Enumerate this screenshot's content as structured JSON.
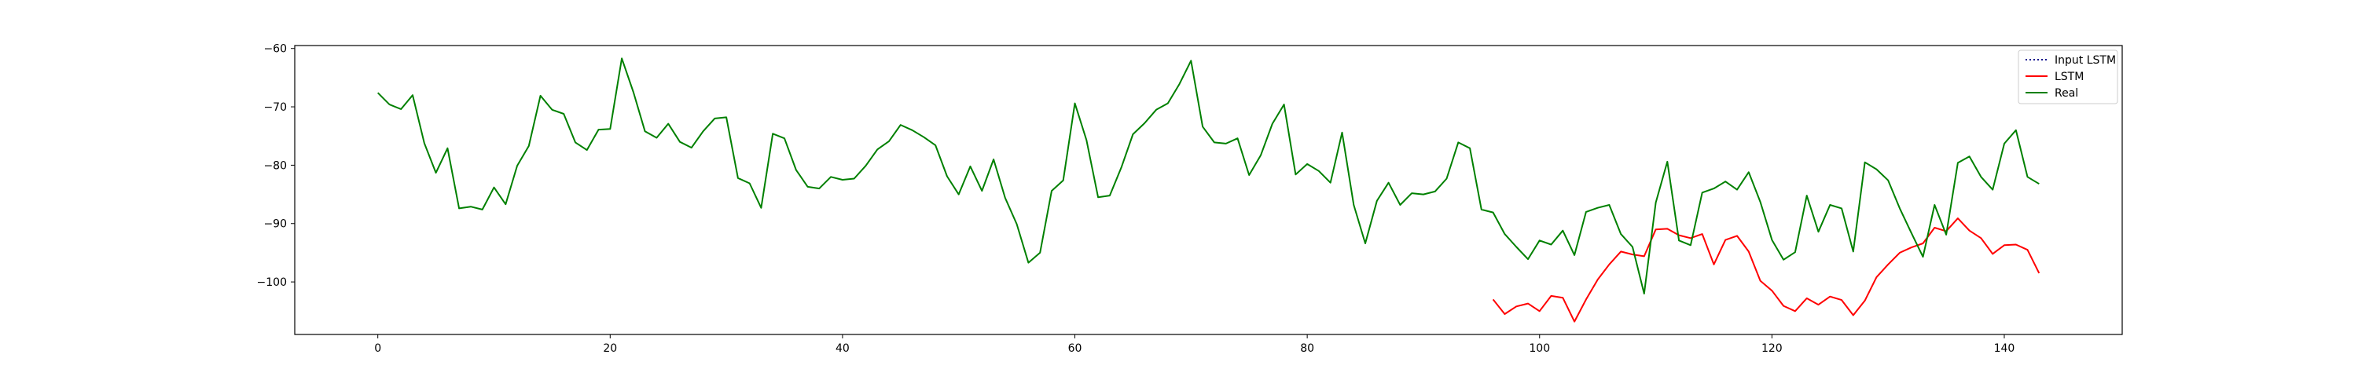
{
  "chart_data": {
    "type": "line",
    "title": "",
    "xlabel": "",
    "ylabel": "",
    "xlim": [
      -7.15,
      150.15
    ],
    "ylim": [
      -109,
      -59.5
    ],
    "xticks": [
      0,
      20,
      40,
      60,
      80,
      100,
      120,
      140
    ],
    "yticks": [
      -60,
      -70,
      -80,
      -90,
      -100
    ],
    "xtick_labels": [
      "0",
      "20",
      "40",
      "60",
      "80",
      "100",
      "120",
      "140"
    ],
    "ytick_labels": [
      "−60",
      "−70",
      "−80",
      "−90",
      "−100"
    ],
    "grid": false,
    "legend_position": "top-right",
    "series": [
      {
        "name": "Input LSTM",
        "color": "#00008b",
        "style": "dotted",
        "x": [],
        "y": []
      },
      {
        "name": "LSTM",
        "color": "#ff0000",
        "style": "solid",
        "x_start": 96,
        "y": [
          -103,
          -105.5,
          -104.2,
          -103.7,
          -105,
          -102.4,
          -102.7,
          -106.8,
          -103,
          -99.6,
          -97,
          -94.8,
          -95.3,
          -95.6,
          -91,
          -90.9,
          -92,
          -92.5,
          -91.8,
          -97,
          -92.8,
          -92.1,
          -94.8,
          -99.8,
          -101.5,
          -104.1,
          -105,
          -102.8,
          -103.9,
          -102.5,
          -103.1,
          -105.7,
          -103.2,
          -99.2,
          -97,
          -95,
          -94.1,
          -93.4,
          -90.7,
          -91.3,
          -89.1,
          -91.2,
          -92.5,
          -95.2,
          -93.7,
          -93.6,
          -94.5,
          -98.5
        ]
      },
      {
        "name": "Real",
        "color": "#008000",
        "style": "solid",
        "x_start": 0,
        "y": [
          -67.6,
          -69.6,
          -70.4,
          -68,
          -76.2,
          -81.3,
          -77.1,
          -87.4,
          -87.1,
          -87.6,
          -83.8,
          -86.7,
          -80.1,
          -76.7,
          -68.1,
          -70.5,
          -71.2,
          -76.1,
          -77.4,
          -73.9,
          -73.8,
          -61.7,
          -67.5,
          -74.2,
          -75.3,
          -72.9,
          -76,
          -77,
          -74.2,
          -72,
          -71.8,
          -82.2,
          -83.1,
          -87.3,
          -74.6,
          -75.4,
          -80.8,
          -83.7,
          -84,
          -82,
          -82.5,
          -82.3,
          -80.1,
          -77.3,
          -75.9,
          -73.1,
          -74,
          -75.2,
          -76.6,
          -81.9,
          -85,
          -80.2,
          -84.4,
          -79,
          -85.6,
          -90.1,
          -96.7,
          -95,
          -84.4,
          -82.6,
          -69.4,
          -75.7,
          -85.5,
          -85.2,
          -80.4,
          -74.7,
          -72.8,
          -70.5,
          -69.4,
          -66.1,
          -62.1,
          -73.4,
          -76.1,
          -76.3,
          -75.4,
          -81.7,
          -78.3,
          -72.9,
          -69.6,
          -81.6,
          -79.8,
          -81,
          -83,
          -74.4,
          -86.8,
          -93.4,
          -86.1,
          -83,
          -86.8,
          -84.8,
          -85,
          -84.5,
          -82.3,
          -76.1,
          -77.1,
          -87.6,
          -88.1,
          -91.8,
          -94,
          -96.1,
          -92.9,
          -93.6,
          -91.2,
          -95.4,
          -88,
          -87.3,
          -86.8,
          -91.8,
          -94,
          -102,
          -86.4,
          -79.4,
          -92.9,
          -93.7,
          -84.7,
          -84,
          -82.8,
          -84.2,
          -81.2,
          -86.3,
          -92.8,
          -96.2,
          -94.9,
          -85.2,
          -91.4,
          -86.8,
          -87.4,
          -94.8,
          -79.5,
          -80.7,
          -82.6,
          -87.4,
          -91.6,
          -95.7,
          -86.8,
          -91.9,
          -79.6,
          -78.5,
          -82,
          -84.2,
          -76.3,
          -74,
          -82,
          -83.2
        ]
      }
    ]
  }
}
